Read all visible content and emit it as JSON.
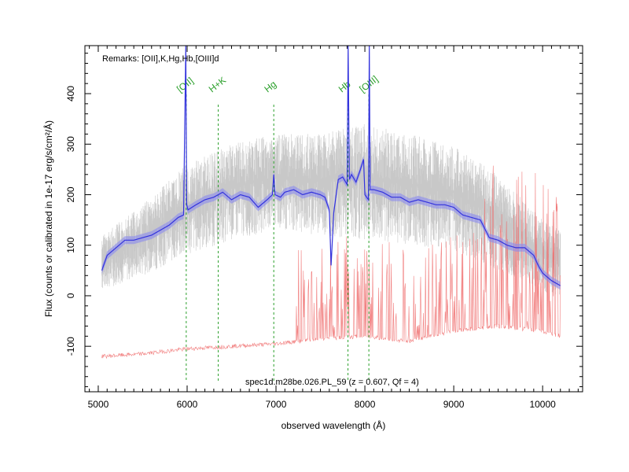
{
  "chart_data": {
    "type": "line",
    "xlabel": "observed wavelength (Å)",
    "ylabel": "Flux (counts or calibrated in 1e-17 erg/s/cm²/Å)",
    "xlim": [
      4850,
      10450
    ],
    "ylim": [
      -190,
      495
    ],
    "x_ticks": [
      5000,
      6000,
      7000,
      8000,
      9000,
      10000
    ],
    "y_ticks": [
      -100,
      0,
      100,
      200,
      300,
      400
    ],
    "remarks": "Remarks: [OII],K,Hg,Hb,[OIII]d",
    "caption": "spec1d.m28be.026.PL_59 (z = 0.607, Qf = 4)",
    "grid": false,
    "colors": {
      "model": "#3333dd",
      "model_band": "#8a8aee",
      "raw": "#c8c8c8",
      "error": "#ee6666",
      "line_marker": "#2ca02c"
    },
    "emission_lines": [
      {
        "name": "[OII]",
        "x": 5990
      },
      {
        "name": "H+K",
        "x": 6350
      },
      {
        "name": "Hg",
        "x": 6975
      },
      {
        "name": "Hb",
        "x": 7810
      },
      {
        "name": "[OIII]",
        "x": 8045
      }
    ],
    "smoothed_spectrum": {
      "x": [
        5040,
        5100,
        5200,
        5300,
        5400,
        5500,
        5600,
        5700,
        5800,
        5900,
        5960,
        5985,
        5995,
        6010,
        6100,
        6200,
        6300,
        6400,
        6500,
        6600,
        6700,
        6800,
        6900,
        6960,
        6975,
        6990,
        7050,
        7100,
        7200,
        7300,
        7400,
        7500,
        7550,
        7600,
        7620,
        7650,
        7700,
        7750,
        7800,
        7812,
        7825,
        7850,
        7900,
        7950,
        7985,
        8000,
        8040,
        8050,
        8060,
        8100,
        8200,
        8300,
        8400,
        8500,
        8600,
        8700,
        8800,
        8900,
        9000,
        9100,
        9200,
        9300,
        9400,
        9500,
        9600,
        9700,
        9800,
        9900,
        9950,
        10000,
        10100,
        10200
      ],
      "y": [
        50,
        80,
        95,
        110,
        110,
        115,
        120,
        130,
        140,
        155,
        160,
        500,
        180,
        170,
        180,
        190,
        195,
        205,
        190,
        200,
        195,
        175,
        190,
        200,
        240,
        200,
        195,
        205,
        210,
        200,
        205,
        200,
        195,
        170,
        60,
        165,
        230,
        235,
        220,
        500,
        230,
        240,
        225,
        250,
        270,
        200,
        190,
        500,
        210,
        210,
        205,
        195,
        195,
        185,
        190,
        185,
        180,
        180,
        175,
        160,
        155,
        150,
        115,
        110,
        100,
        95,
        95,
        80,
        60,
        45,
        30,
        20
      ]
    },
    "raw_spectrum_envelope": {
      "x": [
        5040,
        5500,
        6000,
        6500,
        7000,
        7500,
        8000,
        8500,
        9000,
        9500,
        10000,
        10200
      ],
      "low": [
        10,
        40,
        80,
        110,
        130,
        120,
        110,
        100,
        90,
        50,
        10,
        -10
      ],
      "high": [
        120,
        180,
        260,
        300,
        320,
        320,
        340,
        320,
        300,
        240,
        150,
        130
      ]
    },
    "error_spectrum": {
      "x": [
        5040,
        5500,
        6000,
        6500,
        7000,
        7500,
        8000,
        8500,
        9000,
        9500,
        10000,
        10200
      ],
      "y": [
        -120,
        -115,
        -105,
        -100,
        -95,
        -85,
        -80,
        -90,
        -70,
        -60,
        -70,
        -80
      ]
    }
  }
}
